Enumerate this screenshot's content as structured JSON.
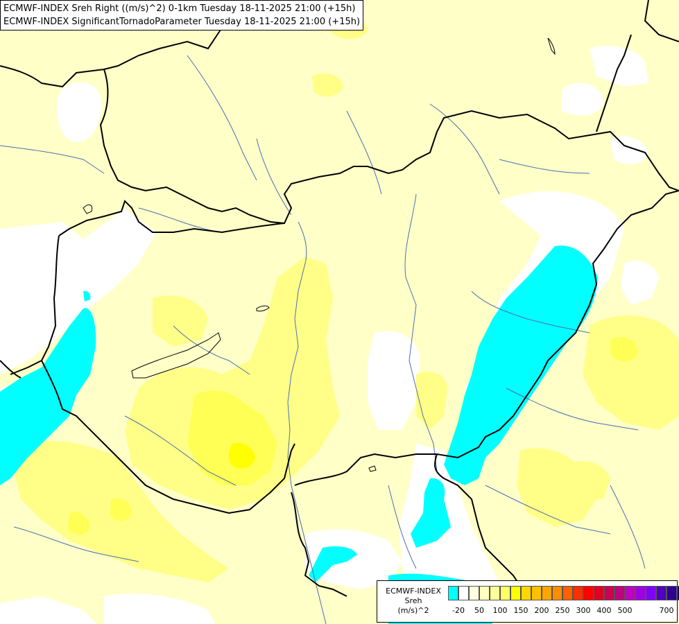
{
  "title": {
    "line1": "ECMWF-INDEX Sreh Right ((m/s)^2) 0-1km Tuesday 18-11-2025 21:00 (+15h)",
    "line2": "ECMWF-INDEX SignificantTornadoParameter Tuesday 18-11-2025 21:00 (+15h)"
  },
  "legend": {
    "model": "ECMWF-INDEX",
    "variable": "Sreh",
    "unit": "(m/s)^2",
    "colors": [
      "#00ffff",
      "#ffffff",
      "#ffffe0",
      "#ffffc0",
      "#ffff99",
      "#ffff66",
      "#ffff00",
      "#ffd700",
      "#ffc000",
      "#ffa500",
      "#ff8c00",
      "#ff6000",
      "#ff3000",
      "#ff0000",
      "#e00020",
      "#d00050",
      "#c00080",
      "#c000c0",
      "#a000e0",
      "#8000ff",
      "#5000c0",
      "#300090",
      "#000080"
    ],
    "ticks": [
      "-20",
      "50",
      "100",
      "150",
      "200",
      "250",
      "300",
      "400",
      "500",
      "700"
    ]
  }
}
